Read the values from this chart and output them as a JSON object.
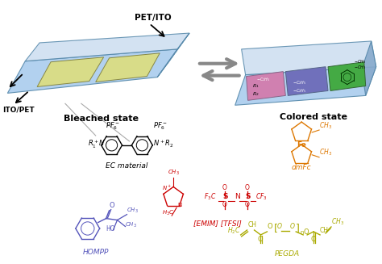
{
  "bg_color": "#ffffff",
  "bleached_label": "Bleached state",
  "colored_label": "Colored state",
  "pet_ito_label": "PET/ITO",
  "ito_pet_label": "ITO/PET",
  "ec_material_label": "EC material",
  "emim_tfsi_label": "[EMIM] [TFSI]",
  "dmfc_label": "dmFc",
  "hompp_label": "HOMPP",
  "pegda_label": "PEGDA",
  "ec_color": "#000000",
  "emim_color": "#cc0000",
  "dmfc_color": "#dd7700",
  "hompp_color": "#5555bb",
  "pegda_color": "#aaaa00",
  "device_blue_light": "#aaccee",
  "device_blue_mid": "#88aacc",
  "device_blue_top": "#ccddf0",
  "device_yellow": "#d8dc88",
  "colored_pink": "#d080b0",
  "colored_purple": "#7070bb",
  "colored_green": "#44aa44",
  "arrow_gray": "#888888"
}
